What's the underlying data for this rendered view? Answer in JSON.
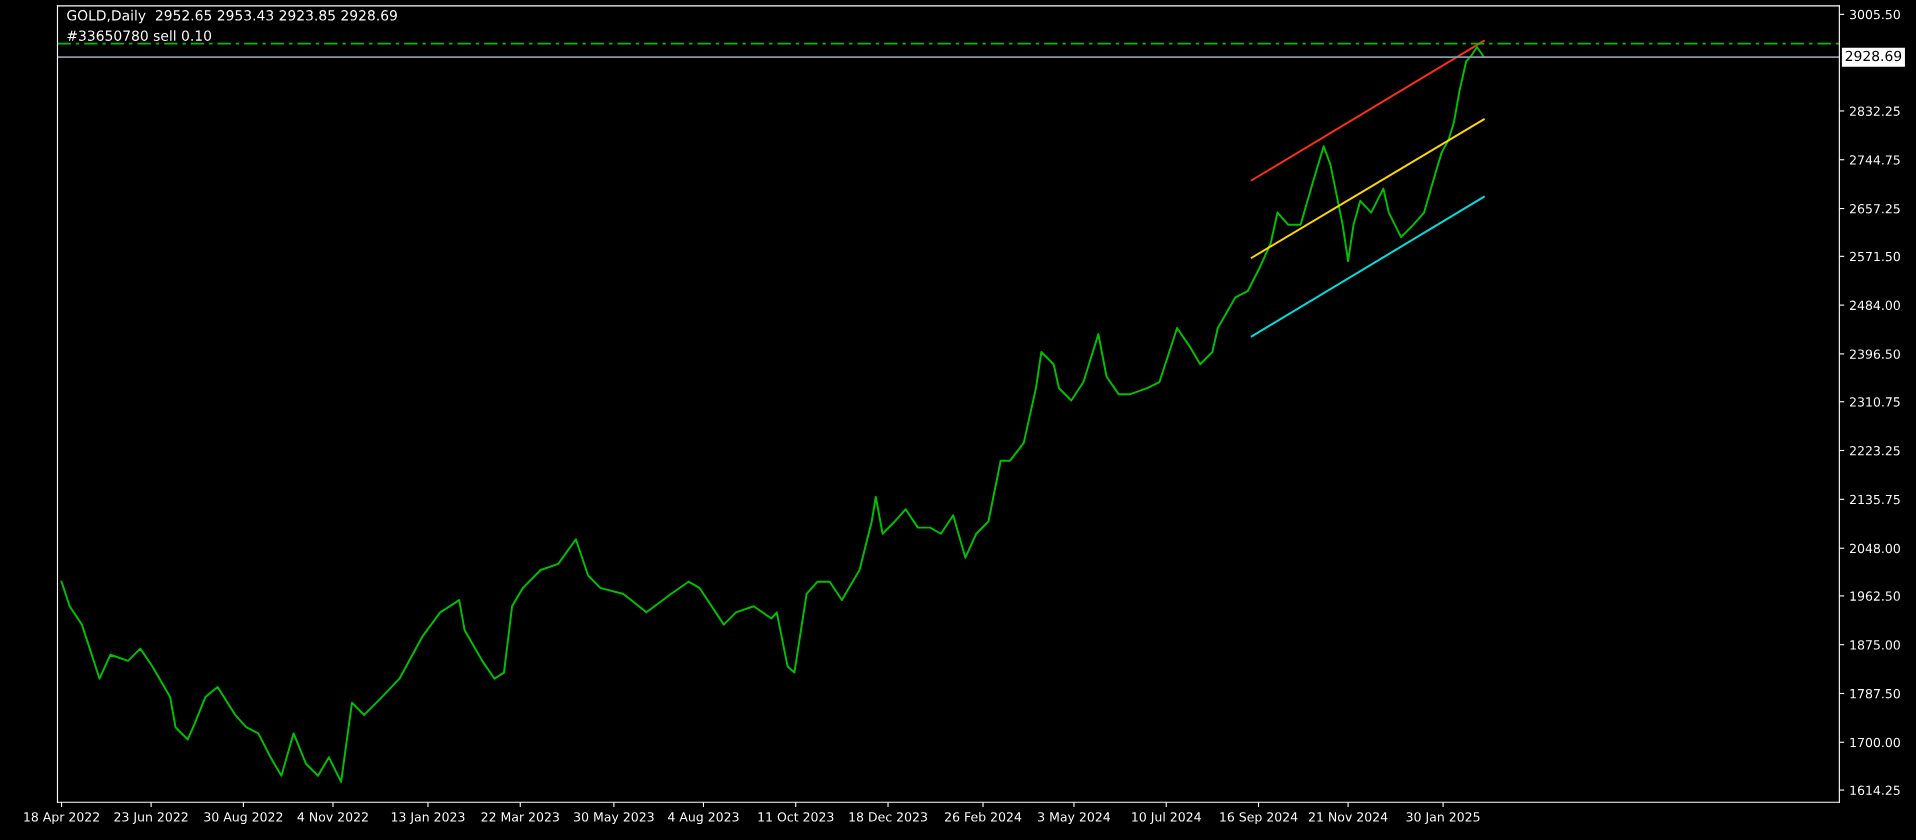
{
  "chart_data": {
    "type": "line",
    "title": "GOLD,Daily  2952.65 2953.43 2923.85 2928.69",
    "xlim": [
      "2022-04-15",
      "2025-11-18"
    ],
    "ylim": [
      1592.5,
      3020.7
    ],
    "xticks": [
      {
        "value": "2022-04-18",
        "label": "18 Apr 2022"
      },
      {
        "value": "2022-06-23",
        "label": "23 Jun 2022"
      },
      {
        "value": "2022-08-30",
        "label": "30 Aug 2022"
      },
      {
        "value": "2022-11-04",
        "label": "4 Nov 2022"
      },
      {
        "value": "2023-01-13",
        "label": "13 Jan 2023"
      },
      {
        "value": "2023-03-22",
        "label": "22 Mar 2023"
      },
      {
        "value": "2023-05-30",
        "label": "30 May 2023"
      },
      {
        "value": "2023-08-04",
        "label": "4 Aug 2023"
      },
      {
        "value": "2023-10-11",
        "label": "11 Oct 2023"
      },
      {
        "value": "2023-12-18",
        "label": "18 Dec 2023"
      },
      {
        "value": "2024-02-26",
        "label": "26 Feb 2024"
      },
      {
        "value": "2024-05-03",
        "label": "3 May 2024"
      },
      {
        "value": "2024-07-10",
        "label": "10 Jul 2024"
      },
      {
        "value": "2024-09-16",
        "label": "16 Sep 2024"
      },
      {
        "value": "2024-11-21",
        "label": "21 Nov 2024"
      },
      {
        "value": "2025-01-30",
        "label": "30 Jan 2025"
      }
    ],
    "yticks": [
      {
        "value": 1614.25,
        "label": "1614.25"
      },
      {
        "value": 1700,
        "label": "1700.00"
      },
      {
        "value": 1787.5,
        "label": "1787.50"
      },
      {
        "value": 1875,
        "label": "1875.00"
      },
      {
        "value": 1962.5,
        "label": "1962.50"
      },
      {
        "value": 2048,
        "label": "2048.00"
      },
      {
        "value": 2135.75,
        "label": "2135.75"
      },
      {
        "value": 2223.25,
        "label": "2223.25"
      },
      {
        "value": 2310.75,
        "label": "2310.75"
      },
      {
        "value": 2396.5,
        "label": "2396.50"
      },
      {
        "value": 2484,
        "label": "2484.00"
      },
      {
        "value": 2571.5,
        "label": "2571.50"
      },
      {
        "value": 2657.25,
        "label": "2657.25"
      },
      {
        "value": 2744.75,
        "label": "2744.75"
      },
      {
        "value": 2832.25,
        "label": "2832.25"
      },
      {
        "value": 3005.5,
        "label": "3005.50"
      }
    ],
    "grid": false,
    "legend": false,
    "series": [
      {
        "color": "#00c000",
        "x": [
          "2022-04-18",
          "2022-04-24",
          "2022-05-03",
          "2022-05-16",
          "2022-05-24",
          "2022-06-06",
          "2022-06-15",
          "2022-06-24",
          "2022-07-07",
          "2022-07-11",
          "2022-07-20",
          "2022-07-24",
          "2022-08-02",
          "2022-08-11",
          "2022-08-24",
          "2022-09-01",
          "2022-09-10",
          "2022-09-19",
          "2022-09-27",
          "2022-10-06",
          "2022-10-15",
          "2022-10-24",
          "2022-11-01",
          "2022-11-10",
          "2022-11-18",
          "2022-11-27",
          "2022-12-10",
          "2022-12-23",
          "2023-01-09",
          "2023-01-22",
          "2023-02-05",
          "2023-02-09",
          "2023-02-22",
          "2023-03-03",
          "2023-03-10",
          "2023-03-16",
          "2023-03-24",
          "2023-04-06",
          "2023-04-19",
          "2023-05-02",
          "2023-05-11",
          "2023-05-20",
          "2023-06-06",
          "2023-06-23",
          "2023-07-11",
          "2023-07-24",
          "2023-08-01",
          "2023-08-19",
          "2023-08-28",
          "2023-09-10",
          "2023-09-23",
          "2023-09-27",
          "2023-10-05",
          "2023-10-10",
          "2023-10-19",
          "2023-10-27",
          "2023-11-05",
          "2023-11-14",
          "2023-11-27",
          "2023-12-06",
          "2023-12-09",
          "2023-12-14",
          "2023-12-23",
          "2023-12-31",
          "2024-01-09",
          "2024-01-18",
          "2024-01-26",
          "2024-02-04",
          "2024-02-13",
          "2024-02-21",
          "2024-03-01",
          "2024-03-10",
          "2024-03-17",
          "2024-03-27",
          "2024-04-05",
          "2024-04-09",
          "2024-04-18",
          "2024-04-22",
          "2024-05-01",
          "2024-05-10",
          "2024-05-21",
          "2024-05-27",
          "2024-06-05",
          "2024-06-13",
          "2024-06-26",
          "2024-07-05",
          "2024-07-18",
          "2024-07-27",
          "2024-08-04",
          "2024-08-13",
          "2024-08-17",
          "2024-08-30",
          "2024-09-08",
          "2024-09-17",
          "2024-09-25",
          "2024-09-30",
          "2024-10-08",
          "2024-10-17",
          "2024-10-26",
          "2024-11-03",
          "2024-11-08",
          "2024-11-17",
          "2024-11-21",
          "2024-11-25",
          "2024-11-30",
          "2024-12-08",
          "2024-12-17",
          "2024-12-21",
          "2024-12-30",
          "2025-01-08",
          "2025-01-16",
          "2025-01-25",
          "2025-01-29",
          "2025-02-03",
          "2025-02-07",
          "2025-02-11",
          "2025-02-16",
          "2025-02-20",
          "2025-02-24",
          "2025-03-01"
        ],
        "values": [
          1988,
          1944,
          1911,
          1814,
          1857,
          1846,
          1868,
          1836,
          1781,
          1727,
          1705,
          1727,
          1781,
          1799,
          1749,
          1727,
          1716,
          1673,
          1640,
          1716,
          1662,
          1640,
          1673,
          1629,
          1771,
          1749,
          1781,
          1814,
          1890,
          1933,
          1955,
          1901,
          1846,
          1814,
          1825,
          1944,
          1977,
          2009,
          2020,
          2064,
          1999,
          1977,
          1966,
          1933,
          1966,
          1988,
          1977,
          1911,
          1933,
          1944,
          1922,
          1933,
          1836,
          1825,
          1966,
          1988,
          1988,
          1955,
          2009,
          2096,
          2140,
          2074,
          2096,
          2118,
          2085,
          2085,
          2074,
          2107,
          2031,
          2074,
          2096,
          2205,
          2205,
          2237,
          2335,
          2400,
          2378,
          2335,
          2313,
          2346,
          2432,
          2356,
          2324,
          2324,
          2335,
          2346,
          2443,
          2411,
          2378,
          2400,
          2443,
          2498,
          2509,
          2552,
          2595,
          2650,
          2628,
          2628,
          2704,
          2769,
          2736,
          2628,
          2563,
          2628,
          2671,
          2650,
          2693,
          2650,
          2606,
          2628,
          2650,
          2726,
          2758,
          2780,
          2812,
          2867,
          2921,
          2932,
          2947,
          2929
        ]
      },
      {
        "color": "#ff3010",
        "x": [
          "2024-09-11",
          "2025-03-01"
        ],
        "values": [
          2708,
          2958
        ]
      },
      {
        "color": "#ffd700",
        "x": [
          "2024-09-11",
          "2025-03-01"
        ],
        "values": [
          2569,
          2817
        ]
      },
      {
        "color": "#00e0e0",
        "x": [
          "2024-09-11",
          "2025-03-01"
        ],
        "values": [
          2428,
          2678
        ]
      }
    ],
    "ref_lines": [
      {
        "axis": "y",
        "value": 2953,
        "label": "#33650780 sell 0.10",
        "color": "#00c000",
        "line_style": "dashed"
      },
      {
        "axis": "y",
        "value": 2928.69,
        "label": "2928.69",
        "color": "#8899a6",
        "line_style": "solid"
      }
    ]
  }
}
